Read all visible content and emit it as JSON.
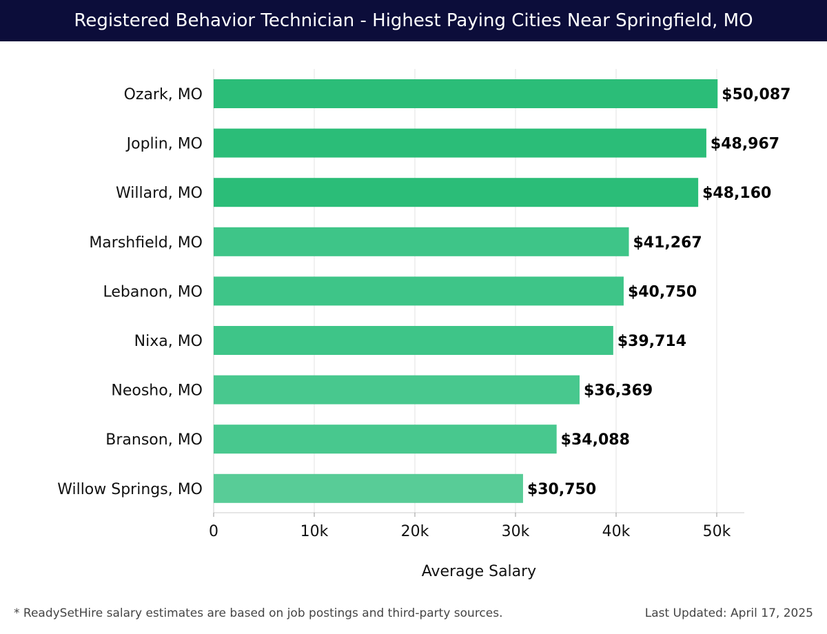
{
  "header": {
    "title": "Registered Behavior Technician - Highest Paying Cities Near Springfield, MO"
  },
  "chart_data": {
    "type": "bar",
    "orientation": "horizontal",
    "title": "Registered Behavior Technician - Highest Paying Cities Near Springfield, MO",
    "xlabel": "Average Salary",
    "ylabel": "",
    "xlim": [
      0,
      52500
    ],
    "x_ticks": [
      0,
      10000,
      20000,
      30000,
      40000,
      50000
    ],
    "x_tick_labels": [
      "0",
      "10k",
      "20k",
      "30k",
      "40k",
      "50k"
    ],
    "grid": true,
    "categories": [
      "Ozark, MO",
      "Joplin, MO",
      "Willard, MO",
      "Marshfield, MO",
      "Lebanon, MO",
      "Nixa, MO",
      "Neosho, MO",
      "Branson, MO",
      "Willow Springs, MO"
    ],
    "values": [
      50087,
      48967,
      48160,
      41267,
      40750,
      39714,
      36369,
      34088,
      30750
    ],
    "value_labels": [
      "$50,087",
      "$48,967",
      "$48,160",
      "$41,267",
      "$40,750",
      "$39,714",
      "$36,369",
      "$34,088",
      "$30,750"
    ],
    "bar_colors": [
      "#2bbd78",
      "#2bbd78",
      "#2bbd78",
      "#3ec588",
      "#3ec588",
      "#3ec588",
      "#48c88e",
      "#48c88e",
      "#58cc97"
    ]
  },
  "footer": {
    "note": "* ReadySetHire salary estimates are based on job postings and third-party sources.",
    "updated": "Last Updated: April 17, 2025"
  }
}
